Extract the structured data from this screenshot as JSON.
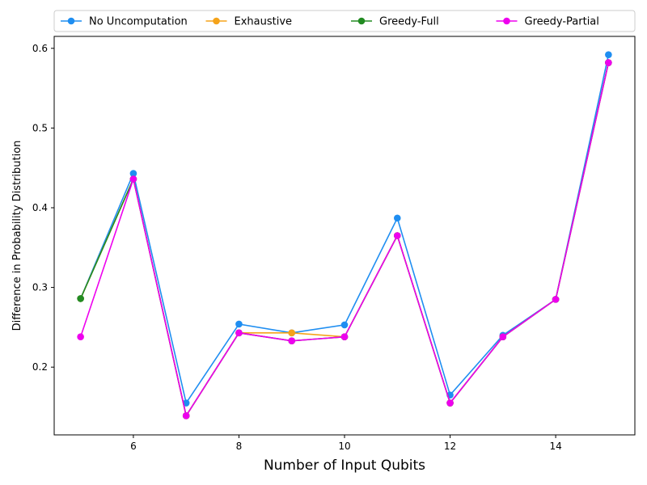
{
  "chart_data": {
    "type": "line",
    "title": "",
    "xlabel": "Number of Input Qubits",
    "ylabel": "Difference in Probability Distribution",
    "xlim": [
      4.5,
      15.5
    ],
    "ylim": [
      0.115,
      0.615
    ],
    "xticks": [
      6,
      8,
      10,
      12,
      14
    ],
    "yticks": [
      0.2,
      0.3,
      0.4,
      0.5,
      0.6
    ],
    "x": [
      5,
      6,
      7,
      8,
      9,
      10,
      11,
      12,
      13,
      14,
      15
    ],
    "legend": {
      "placement": "top, above plot",
      "columns": 4
    },
    "grid": false,
    "series": [
      {
        "name": "No Uncomputation",
        "color": "#1f8ef1",
        "values": [
          0.286,
          0.443,
          0.155,
          0.254,
          0.243,
          0.253,
          0.387,
          0.165,
          0.24,
          0.285,
          0.592
        ]
      },
      {
        "name": "Exhaustive",
        "color": "#f5a31a",
        "values": [
          0.286,
          0.436,
          0.139,
          0.243,
          0.243,
          0.238,
          0.365,
          0.155,
          0.238,
          0.285,
          0.582
        ]
      },
      {
        "name": "Greedy-Full",
        "color": "#228b22",
        "values": [
          0.286,
          0.436,
          0.139,
          0.243,
          0.233,
          0.238,
          0.365,
          0.155,
          0.238,
          0.285,
          0.582
        ]
      },
      {
        "name": "Greedy-Partial",
        "color": "#ee00ee",
        "values": [
          0.238,
          0.436,
          0.139,
          0.243,
          0.233,
          0.238,
          0.365,
          0.155,
          0.238,
          0.285,
          0.582
        ]
      }
    ]
  }
}
